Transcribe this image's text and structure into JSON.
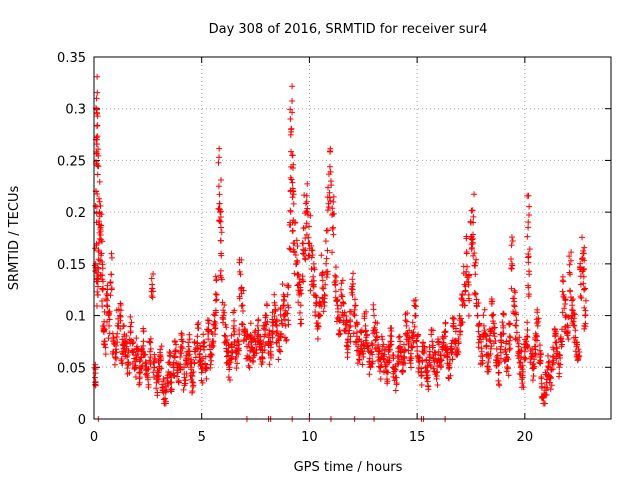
{
  "chart_data": {
    "type": "scatter",
    "title": "Day 308 of 2016, SRMTID for receiver sur4",
    "xlabel": "GPS time / hours",
    "ylabel": "SRMTID / TECUs",
    "xlim": [
      0,
      24
    ],
    "ylim": [
      0,
      0.35
    ],
    "xticks": [
      0,
      5,
      10,
      15,
      20
    ],
    "xtick_labels": [
      "0",
      "5",
      "10",
      "15",
      "20"
    ],
    "yticks": [
      0,
      0.05,
      0.1,
      0.15,
      0.2,
      0.25,
      0.3,
      0.35
    ],
    "ytick_labels": [
      "0",
      "0.05",
      "0.1",
      "0.15",
      "0.2",
      "0.25",
      "0.3",
      "0.35"
    ],
    "grid": true,
    "marker": "+",
    "color": "#ff0000",
    "series": [
      {
        "name": "sur4",
        "points": [
          [
            0.05,
            0.04
          ],
          [
            0.08,
            0.15
          ],
          [
            0.1,
            0.22
          ],
          [
            0.12,
            0.31
          ],
          [
            0.14,
            0.295
          ],
          [
            0.16,
            0.245
          ],
          [
            0.18,
            0.12
          ],
          [
            0.2,
            0.145
          ],
          [
            0.25,
            0.2
          ],
          [
            0.3,
            0.185
          ],
          [
            0.35,
            0.16
          ],
          [
            0.4,
            0.125
          ],
          [
            0.45,
            0.09
          ],
          [
            0.5,
            0.075
          ],
          [
            0.6,
            0.11
          ],
          [
            0.7,
            0.09
          ],
          [
            0.8,
            0.14
          ],
          [
            0.9,
            0.075
          ],
          [
            1.0,
            0.06
          ],
          [
            1.1,
            0.09
          ],
          [
            1.2,
            0.1
          ],
          [
            1.3,
            0.065
          ],
          [
            1.4,
            0.08
          ],
          [
            1.5,
            0.07
          ],
          [
            1.6,
            0.055
          ],
          [
            1.7,
            0.085
          ],
          [
            1.8,
            0.065
          ],
          [
            1.9,
            0.05
          ],
          [
            2.0,
            0.07
          ],
          [
            2.1,
            0.045
          ],
          [
            2.2,
            0.06
          ],
          [
            2.3,
            0.075
          ],
          [
            2.4,
            0.055
          ],
          [
            2.5,
            0.04
          ],
          [
            2.6,
            0.065
          ],
          [
            2.7,
            0.13
          ],
          [
            2.8,
            0.05
          ],
          [
            2.9,
            0.035
          ],
          [
            3.0,
            0.045
          ],
          [
            3.1,
            0.06
          ],
          [
            3.2,
            0.03
          ],
          [
            3.3,
            0.02
          ],
          [
            3.4,
            0.04
          ],
          [
            3.5,
            0.055
          ],
          [
            3.6,
            0.035
          ],
          [
            3.7,
            0.05
          ],
          [
            3.8,
            0.065
          ],
          [
            3.9,
            0.045
          ],
          [
            4.0,
            0.06
          ],
          [
            4.1,
            0.075
          ],
          [
            4.2,
            0.04
          ],
          [
            4.3,
            0.055
          ],
          [
            4.4,
            0.07
          ],
          [
            4.5,
            0.05
          ],
          [
            4.6,
            0.035
          ],
          [
            4.7,
            0.065
          ],
          [
            4.8,
            0.08
          ],
          [
            4.9,
            0.06
          ],
          [
            5.0,
            0.045
          ],
          [
            5.1,
            0.07
          ],
          [
            5.2,
            0.05
          ],
          [
            5.3,
            0.085
          ],
          [
            5.4,
            0.06
          ],
          [
            5.5,
            0.075
          ],
          [
            5.6,
            0.09
          ],
          [
            5.7,
            0.12
          ],
          [
            5.8,
            0.225
          ],
          [
            5.85,
            0.2
          ],
          [
            5.9,
            0.16
          ],
          [
            6.0,
            0.1
          ],
          [
            6.1,
            0.08
          ],
          [
            6.2,
            0.065
          ],
          [
            6.3,
            0.05
          ],
          [
            6.4,
            0.07
          ],
          [
            6.5,
            0.09
          ],
          [
            6.6,
            0.06
          ],
          [
            6.7,
            0.075
          ],
          [
            6.8,
            0.14
          ],
          [
            6.9,
            0.11
          ],
          [
            7.0,
            0.085
          ],
          [
            7.1,
            0.07
          ],
          [
            7.2,
            0.06
          ],
          [
            7.3,
            0.08
          ],
          [
            7.4,
            0.065
          ],
          [
            7.5,
            0.075
          ],
          [
            7.6,
            0.09
          ],
          [
            7.7,
            0.07
          ],
          [
            7.8,
            0.06
          ],
          [
            7.9,
            0.08
          ],
          [
            8.0,
            0.1
          ],
          [
            8.1,
            0.075
          ],
          [
            8.2,
            0.065
          ],
          [
            8.3,
            0.09
          ],
          [
            8.4,
            0.11
          ],
          [
            8.5,
            0.085
          ],
          [
            8.6,
            0.07
          ],
          [
            8.7,
            0.095
          ],
          [
            8.8,
            0.12
          ],
          [
            8.9,
            0.09
          ],
          [
            9.0,
            0.11
          ],
          [
            9.1,
            0.19
          ],
          [
            9.15,
            0.28
          ],
          [
            9.2,
            0.255
          ],
          [
            9.25,
            0.22
          ],
          [
            9.3,
            0.17
          ],
          [
            9.4,
            0.15
          ],
          [
            9.5,
            0.13
          ],
          [
            9.6,
            0.11
          ],
          [
            9.7,
            0.16
          ],
          [
            9.8,
            0.185
          ],
          [
            9.9,
            0.2
          ],
          [
            10.0,
            0.17
          ],
          [
            10.1,
            0.145
          ],
          [
            10.2,
            0.13
          ],
          [
            10.3,
            0.11
          ],
          [
            10.4,
            0.09
          ],
          [
            10.5,
            0.1
          ],
          [
            10.6,
            0.14
          ],
          [
            10.7,
            0.12
          ],
          [
            10.8,
            0.155
          ],
          [
            10.9,
            0.205
          ],
          [
            11.0,
            0.23
          ],
          [
            11.1,
            0.185
          ],
          [
            11.2,
            0.13
          ],
          [
            11.3,
            0.11
          ],
          [
            11.4,
            0.095
          ],
          [
            11.5,
            0.12
          ],
          [
            11.6,
            0.1
          ],
          [
            11.7,
            0.085
          ],
          [
            11.8,
            0.07
          ],
          [
            11.9,
            0.09
          ],
          [
            12.0,
            0.12
          ],
          [
            12.1,
            0.1
          ],
          [
            12.2,
            0.08
          ],
          [
            12.3,
            0.065
          ],
          [
            12.4,
            0.075
          ],
          [
            12.5,
            0.06
          ],
          [
            12.6,
            0.09
          ],
          [
            12.7,
            0.07
          ],
          [
            12.8,
            0.055
          ],
          [
            12.9,
            0.065
          ],
          [
            13.0,
            0.1
          ],
          [
            13.1,
            0.08
          ],
          [
            13.2,
            0.06
          ],
          [
            13.3,
            0.05
          ],
          [
            13.4,
            0.07
          ],
          [
            13.5,
            0.055
          ],
          [
            13.6,
            0.045
          ],
          [
            13.7,
            0.06
          ],
          [
            13.8,
            0.075
          ],
          [
            13.9,
            0.05
          ],
          [
            14.0,
            0.04
          ],
          [
            14.1,
            0.06
          ],
          [
            14.2,
            0.07
          ],
          [
            14.3,
            0.055
          ],
          [
            14.4,
            0.065
          ],
          [
            14.5,
            0.09
          ],
          [
            14.6,
            0.075
          ],
          [
            14.7,
            0.06
          ],
          [
            14.8,
            0.08
          ],
          [
            14.9,
            0.1
          ],
          [
            15.0,
            0.07
          ],
          [
            15.1,
            0.055
          ],
          [
            15.2,
            0.045
          ],
          [
            15.3,
            0.065
          ],
          [
            15.4,
            0.05
          ],
          [
            15.5,
            0.04
          ],
          [
            15.6,
            0.06
          ],
          [
            15.7,
            0.075
          ],
          [
            15.8,
            0.055
          ],
          [
            15.9,
            0.045
          ],
          [
            16.0,
            0.065
          ],
          [
            16.1,
            0.05
          ],
          [
            16.2,
            0.07
          ],
          [
            16.3,
            0.08
          ],
          [
            16.4,
            0.06
          ],
          [
            16.5,
            0.05
          ],
          [
            16.6,
            0.07
          ],
          [
            16.7,
            0.09
          ],
          [
            16.8,
            0.075
          ],
          [
            16.9,
            0.065
          ],
          [
            17.0,
            0.085
          ],
          [
            17.1,
            0.11
          ],
          [
            17.2,
            0.13
          ],
          [
            17.3,
            0.16
          ],
          [
            17.4,
            0.12
          ],
          [
            17.5,
            0.175
          ],
          [
            17.6,
            0.19
          ],
          [
            17.7,
            0.14
          ],
          [
            17.8,
            0.1
          ],
          [
            17.9,
            0.08
          ],
          [
            18.0,
            0.065
          ],
          [
            18.1,
            0.09
          ],
          [
            18.2,
            0.07
          ],
          [
            18.3,
            0.055
          ],
          [
            18.4,
            0.075
          ],
          [
            18.5,
            0.1
          ],
          [
            18.6,
            0.08
          ],
          [
            18.7,
            0.06
          ],
          [
            18.8,
            0.045
          ],
          [
            18.9,
            0.07
          ],
          [
            19.0,
            0.09
          ],
          [
            19.1,
            0.065
          ],
          [
            19.2,
            0.05
          ],
          [
            19.3,
            0.08
          ],
          [
            19.4,
            0.15
          ],
          [
            19.5,
            0.11
          ],
          [
            19.6,
            0.09
          ],
          [
            19.7,
            0.07
          ],
          [
            19.8,
            0.055
          ],
          [
            19.9,
            0.04
          ],
          [
            20.0,
            0.065
          ],
          [
            20.1,
            0.08
          ],
          [
            20.15,
            0.185
          ],
          [
            20.2,
            0.14
          ],
          [
            20.3,
            0.06
          ],
          [
            20.4,
            0.05
          ],
          [
            20.5,
            0.07
          ],
          [
            20.6,
            0.09
          ],
          [
            20.7,
            0.06
          ],
          [
            20.8,
            0.03
          ],
          [
            20.9,
            0.025
          ],
          [
            21.0,
            0.035
          ],
          [
            21.1,
            0.05
          ],
          [
            21.2,
            0.04
          ],
          [
            21.3,
            0.06
          ],
          [
            21.4,
            0.08
          ],
          [
            21.5,
            0.065
          ],
          [
            21.6,
            0.05
          ],
          [
            21.7,
            0.075
          ],
          [
            21.8,
            0.12
          ],
          [
            21.9,
            0.1
          ],
          [
            22.0,
            0.085
          ],
          [
            22.1,
            0.14
          ],
          [
            22.2,
            0.11
          ],
          [
            22.3,
            0.09
          ],
          [
            22.4,
            0.07
          ],
          [
            22.5,
            0.06
          ],
          [
            22.6,
            0.13
          ],
          [
            22.7,
            0.16
          ],
          [
            22.75,
            0.145
          ],
          [
            22.8,
            0.1
          ]
        ]
      }
    ],
    "zero_points_x": [
      0.2,
      7.1,
      8.1,
      8.2,
      9.2,
      10.0,
      11.0,
      12.1,
      13.0,
      15.2,
      15.3,
      16.3
    ]
  }
}
